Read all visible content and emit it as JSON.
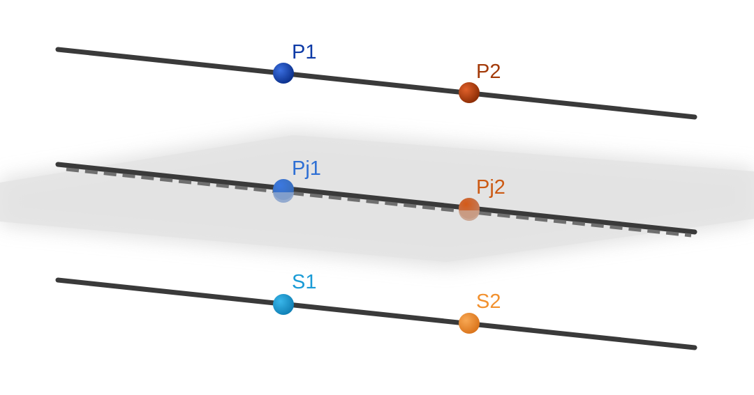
{
  "points": {
    "p1": {
      "label": "P1",
      "fill": "#0d3aa6",
      "label_color": "#0d3aa6"
    },
    "p2": {
      "label": "P2",
      "fill": "#b23c06",
      "label_color": "#a33a08"
    },
    "pj1": {
      "label": "Pj1",
      "fill": "#2f6fd0",
      "label_color": "#2e6fd4"
    },
    "pj2": {
      "label": "Pj2",
      "fill": "#c8561d",
      "label_color": "#cc5a14"
    },
    "s1": {
      "label": "S1",
      "fill": "#1795cf",
      "label_color": "#1a9bd6"
    },
    "s2": {
      "label": "S2",
      "fill": "#f08a2a",
      "label_color": "#f2912e"
    }
  },
  "colors": {
    "line": "#3a3a3a",
    "plane": "#dcdcdc"
  }
}
